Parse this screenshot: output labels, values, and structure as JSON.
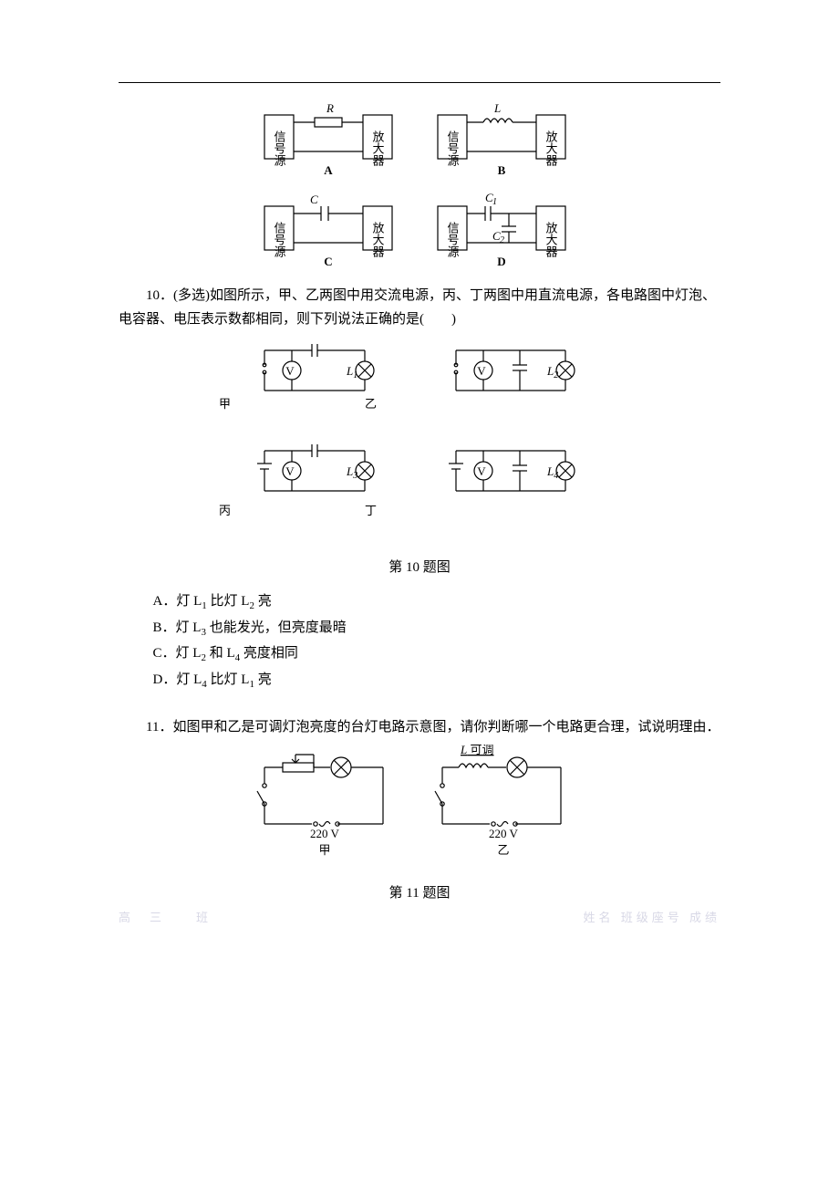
{
  "colors": {
    "text": "#000000",
    "bg": "#ffffff",
    "line": "#000000",
    "footer": "#d8d8e6"
  },
  "fig_top": {
    "box_labels": {
      "src": "信号源",
      "amp": "放大器"
    },
    "A": {
      "caption": "A",
      "component": "R"
    },
    "B": {
      "caption": "B",
      "component": "L"
    },
    "C": {
      "caption": "C",
      "component": "C"
    },
    "D": {
      "caption": "D",
      "components": {
        "c1": "C",
        "c1sub": "1",
        "c2": "C",
        "c2sub": "2"
      }
    }
  },
  "q10": {
    "stem": "10．(多选)如图所示，甲、乙两图中用交流电源，丙、丁两图中用直流电源，各电路图中灯泡、电容器、电压表示数都相同，则下列说法正确的是(　　)",
    "circuit_labels": {
      "jia": "甲",
      "yi": "乙",
      "bing": "丙",
      "ding": "丁",
      "L1": "L",
      "L1sub": "1",
      "L2": "L",
      "L2sub": "2",
      "L3": "L",
      "L3sub": "3",
      "L4": "L",
      "L4sub": "4",
      "V": "V"
    },
    "caption": "第 10 题图",
    "options": {
      "A": {
        "prefix": "A．",
        "parts": [
          "灯 L",
          "1",
          " 比灯 L",
          "2",
          " 亮"
        ]
      },
      "B": {
        "prefix": "B．",
        "parts": [
          "灯 L",
          "3",
          " 也能发光，但亮度最暗"
        ]
      },
      "C": {
        "prefix": "C．",
        "parts": [
          "灯 L",
          "2",
          " 和 L",
          "4",
          " 亮度相同"
        ]
      },
      "D": {
        "prefix": "D．",
        "parts": [
          "灯 L",
          "4",
          " 比灯 L",
          "1",
          " 亮"
        ]
      }
    }
  },
  "q11": {
    "stem": "11．如图甲和乙是可调灯泡亮度的台灯电路示意图，请你判断哪一个电路更合理，试说明理由．",
    "labels": {
      "jia": "甲",
      "yi": "乙",
      "v": "220 V",
      "Ladj": "L 可调"
    },
    "caption": "第 11 题图"
  },
  "footer": {
    "left": "高　三　　班",
    "right": "姓名 班级座号 成绩"
  }
}
